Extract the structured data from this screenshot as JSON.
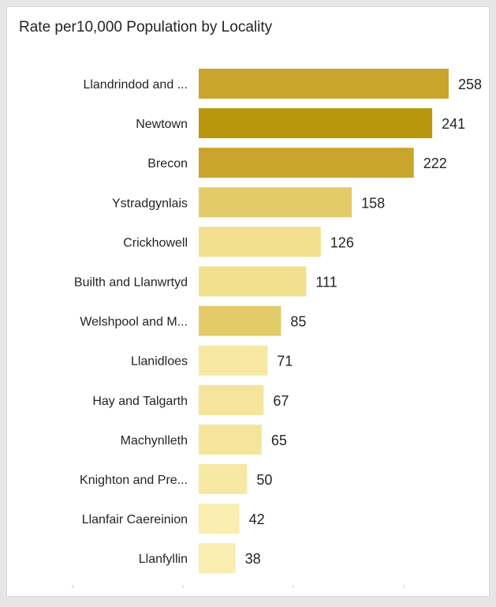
{
  "chart_data": {
    "type": "bar",
    "orientation": "horizontal",
    "title": "Rate per10,000 Population by Locality",
    "categories": [
      "Llandrindod and ...",
      "Newtown",
      "Brecon",
      "Ystradgynlais",
      "Crickhowell",
      "Builth and Llanwrtyd",
      "Welshpool and M...",
      "Llanidloes",
      "Hay and Talgarth",
      "Machynlleth",
      "Knighton and Pre...",
      "Llanfair Caereinion",
      "Llanfyllin"
    ],
    "values": [
      258,
      241,
      222,
      158,
      126,
      111,
      85,
      71,
      67,
      65,
      50,
      42,
      38
    ],
    "bar_colors": [
      "#c9a52d",
      "#b8960e",
      "#c9a52d",
      "#e3cb6a",
      "#f2e08f",
      "#f2e08f",
      "#e3cb6a",
      "#f7e8a4",
      "#f5e59c",
      "#f5e59c",
      "#f7e8a4",
      "#f9edb0",
      "#f9edb0"
    ],
    "xlim": [
      0,
      280
    ],
    "sort": "descending",
    "data_labels": true,
    "grid": false,
    "legend": "none"
  }
}
